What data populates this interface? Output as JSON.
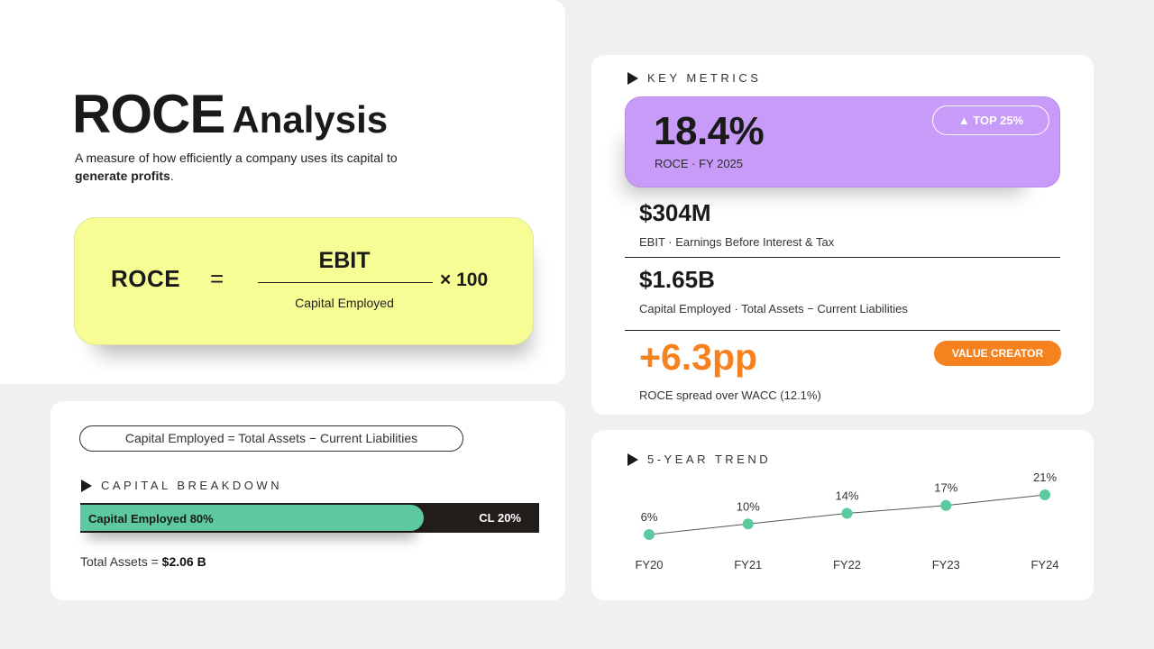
{
  "title": {
    "main": "ROCE",
    "secondary": "Analysis"
  },
  "subtitle": {
    "prefix": "A measure of how efficiently a company uses its capital to ",
    "emphasis": "generate profits",
    "suffix": "."
  },
  "formula": {
    "lhs": "ROCE",
    "equals": "=",
    "numerator": "EBIT",
    "denominator": "Capital Employed",
    "multiplier": "× 100"
  },
  "breakdown": {
    "formula_pill": "Capital Employed  =  Total Assets  −  Current Liabilities",
    "heading": "CAPITAL BREAKDOWN",
    "capital_employed_label": "Capital Employed  80%",
    "capital_employed_fraction": 0.8,
    "cl_label": "CL  20%",
    "total_label": "Total Assets  = ",
    "total_value": "$2.06 B"
  },
  "metrics": {
    "heading": "KEY METRICS",
    "roce": {
      "value": "18.4%",
      "sub": "ROCE  ·  FY 2025",
      "badge": "▲ TOP 25%"
    },
    "ebit": {
      "value": "$304M",
      "sub": "EBIT  ·  Earnings Before Interest & Tax"
    },
    "capital": {
      "value": "$1.65B",
      "sub": "Capital Employed  ·  Total Assets − Current Liabilities"
    },
    "spread": {
      "value": "+6.3pp",
      "sub": "ROCE spread over WACC (12.1%)",
      "badge": "VALUE CREATOR"
    }
  },
  "colors": {
    "formula_bg": "#f6fd94",
    "roce_bg": "#c99bf9",
    "accent_green": "#5cc99e",
    "accent_orange": "#f5821f",
    "bar_dark": "#221c1a"
  },
  "trend": {
    "heading": "5-YEAR TREND"
  },
  "chart_data": {
    "type": "line",
    "categories": [
      "FY20",
      "FY21",
      "FY22",
      "FY23",
      "FY24"
    ],
    "values": [
      6,
      10,
      14,
      17,
      21
    ],
    "data_labels": [
      "6%",
      "10%",
      "14%",
      "17%",
      "21%"
    ]
  }
}
